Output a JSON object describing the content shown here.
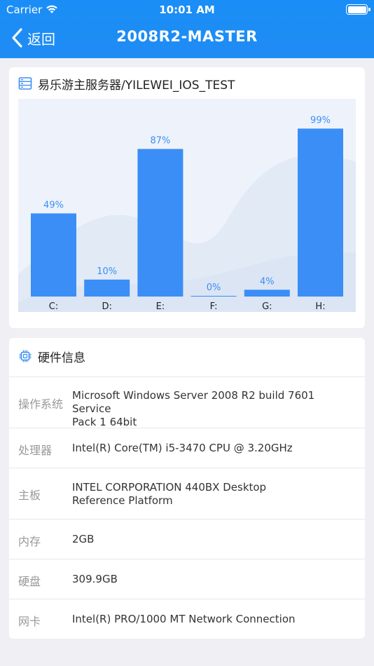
{
  "status_bar": {
    "carrier": "Carrier",
    "time": "10:01 AM"
  },
  "nav": {
    "back_label": "返回",
    "title": "2008R2-MASTER"
  },
  "disk_card": {
    "title": "易乐游主服务器/YILEWEI_IOS_TEST",
    "icon": "server-icon"
  },
  "chart_data": {
    "type": "bar",
    "categories": [
      "C:",
      "D:",
      "E:",
      "F:",
      "G:",
      "H:"
    ],
    "values": [
      49,
      10,
      87,
      0,
      4,
      99
    ],
    "value_labels": [
      "49%",
      "10%",
      "87%",
      "0%",
      "4%",
      "99%"
    ],
    "ylim": [
      0,
      100
    ],
    "grid": false,
    "bar_color": "#3a8ef6",
    "label_color": "#3a8ef6"
  },
  "hardware": {
    "title": "硬件信息",
    "icon": "chip-icon",
    "rows": [
      {
        "key": "操作系统",
        "value_lines": [
          "Microsoft Windows Server 2008 R2 build 7601 Service",
          "Pack 1 64bit"
        ]
      },
      {
        "key": "处理器",
        "value_lines": [
          "Intel(R) Core(TM) i5-3470 CPU @ 3.20GHz"
        ]
      },
      {
        "key": "主板",
        "value_lines": [
          "INTEL CORPORATION 440BX Desktop",
          "Reference Platform"
        ]
      },
      {
        "key": "内存",
        "value_lines": [
          "2GB"
        ]
      },
      {
        "key": "硬盘",
        "value_lines": [
          "309.9GB"
        ]
      },
      {
        "key": "网卡",
        "value_lines": [
          "Intel(R) PRO/1000 MT Network Connection"
        ]
      }
    ]
  },
  "colors": {
    "nav": "#1f8cf3",
    "accent": "#3a8ef6"
  }
}
